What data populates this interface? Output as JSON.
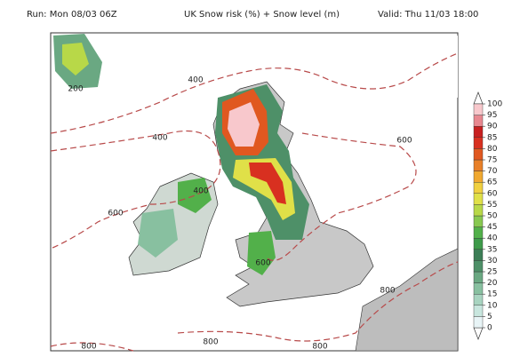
{
  "header": {
    "run": "Run: Mon 08/03 06Z",
    "title": "UK Snow risk (%) + Snow level (m)",
    "valid": "Valid: Thu 11/03 18:00"
  },
  "contour_labels": [
    "200",
    "400",
    "400",
    "400",
    "600",
    "600",
    "600",
    "800",
    "800",
    "800",
    "800"
  ],
  "colorbar": {
    "ticks": [
      0,
      5,
      10,
      15,
      20,
      25,
      30,
      35,
      40,
      45,
      50,
      55,
      60,
      65,
      70,
      75,
      80,
      85,
      90,
      95,
      100
    ],
    "colors": [
      "#e8f4f6",
      "#c8e6de",
      "#a8d4c0",
      "#88c0a0",
      "#6aa882",
      "#4e9068",
      "#3c7e56",
      "#3e9a4a",
      "#52b04a",
      "#88c850",
      "#b8d848",
      "#e0e048",
      "#f0d040",
      "#f0a830",
      "#e88028",
      "#e05820",
      "#d83020",
      "#c82020",
      "#e88890",
      "#f8c8cc"
    ]
  }
}
